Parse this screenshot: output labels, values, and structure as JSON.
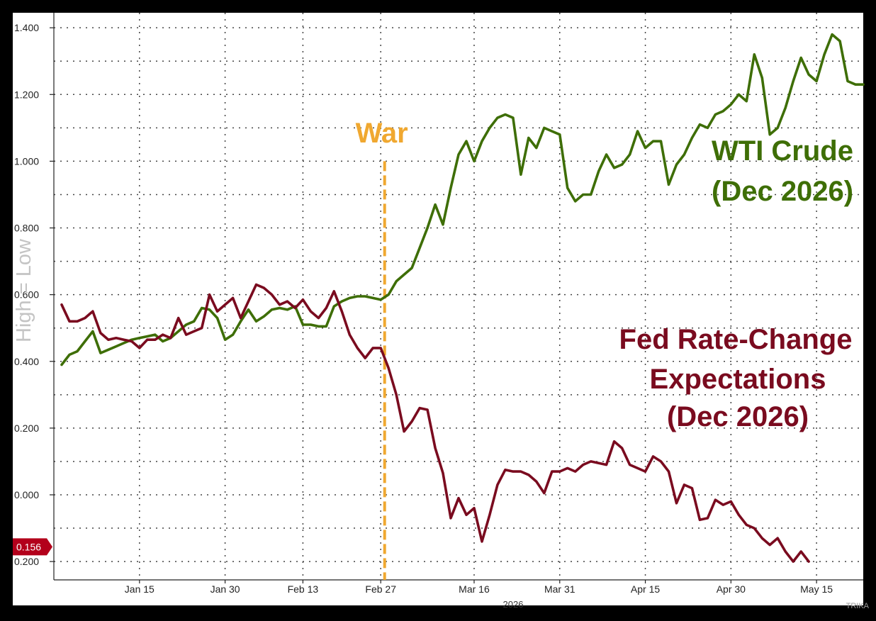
{
  "chart_data": {
    "type": "line",
    "left_axis": {
      "ticks": [
        1.4,
        1.2,
        1.0,
        0.8,
        0.6,
        0.4,
        0.2,
        0.0,
        -0.2
      ],
      "tick_labels": [
        "1.400",
        "1.200",
        "1.000",
        "0.800",
        "0.600",
        "0.400",
        "0.200",
        "0.000",
        "0.200"
      ],
      "ylim": [
        -0.255,
        1.445
      ],
      "side_label": "High = Low",
      "last_value_marker": {
        "label": "0.156",
        "value": -0.156,
        "color": "#b3001b"
      }
    },
    "x_axis": {
      "tick_labels": [
        "Jan 15",
        "Jan 30",
        "Feb 13",
        "Feb 27",
        "Mar 16",
        "Mar 31",
        "Apr 15",
        "Apr 30",
        "May 15"
      ],
      "tick_index": [
        10,
        21,
        31,
        41,
        53,
        64,
        75,
        86,
        97
      ],
      "n_points": 104,
      "year_label": "2026",
      "watermark": "TRIKA"
    },
    "event_marker": {
      "label": "War",
      "index": 41.5,
      "color": "#f0a830"
    },
    "grid": true,
    "series": [
      {
        "name": "WTI Crude (Dec 2026)",
        "label_lines": [
          "WTI Crude",
          "(Dec 2026)"
        ],
        "color": "#3e6e06",
        "values": [
          0.39,
          0.42,
          0.43,
          0.46,
          0.49,
          0.425,
          0.435,
          0.445,
          0.455,
          0.465,
          0.47,
          0.475,
          0.48,
          0.46,
          0.47,
          0.49,
          0.51,
          0.52,
          0.56,
          0.555,
          0.53,
          0.465,
          0.48,
          0.52,
          0.555,
          0.52,
          0.535,
          0.555,
          0.56,
          0.555,
          0.565,
          0.51,
          0.51,
          0.505,
          0.505,
          0.565,
          0.58,
          0.59,
          0.595,
          0.595,
          0.59,
          0.585,
          0.6,
          0.64,
          0.66,
          0.68,
          0.74,
          0.8,
          0.87,
          0.81,
          0.92,
          1.02,
          1.06,
          1.0,
          1.06,
          1.1,
          1.13,
          1.14,
          1.13,
          0.96,
          1.07,
          1.04,
          1.1,
          1.09,
          1.08,
          0.92,
          0.88,
          0.9,
          0.9,
          0.97,
          1.02,
          0.98,
          0.99,
          1.02,
          1.09,
          1.04,
          1.06,
          1.06,
          0.93,
          0.99,
          1.02,
          1.07,
          1.11,
          1.1,
          1.14,
          1.15,
          1.17,
          1.2,
          1.18,
          1.32,
          1.25,
          1.08,
          1.1,
          1.16,
          1.24,
          1.31,
          1.26,
          1.24,
          1.32,
          1.38,
          1.36,
          1.24,
          1.23,
          1.23
        ]
      },
      {
        "name": "Fed Rate-Change Expectations (Dec 2026)",
        "label_lines": [
          "Fed Rate-Change",
          "Expectations",
          "(Dec 2026)"
        ],
        "color": "#7a0b1f",
        "values": [
          0.57,
          0.52,
          0.52,
          0.53,
          0.55,
          0.485,
          0.465,
          0.47,
          0.465,
          0.46,
          0.44,
          0.465,
          0.465,
          0.48,
          0.47,
          0.53,
          0.48,
          0.49,
          0.5,
          0.6,
          0.55,
          0.57,
          0.59,
          0.53,
          0.58,
          0.63,
          0.62,
          0.6,
          0.57,
          0.58,
          0.56,
          0.585,
          0.55,
          0.53,
          0.56,
          0.61,
          0.55,
          0.48,
          0.44,
          0.41,
          0.44,
          0.44,
          0.38,
          0.3,
          0.19,
          0.22,
          0.26,
          0.255,
          0.14,
          0.065,
          -0.07,
          -0.01,
          -0.06,
          -0.04,
          -0.14,
          -0.06,
          0.03,
          0.075,
          0.07,
          0.07,
          0.06,
          0.04,
          0.005,
          0.07,
          0.07,
          0.08,
          0.07,
          0.09,
          0.1,
          0.095,
          0.09,
          0.16,
          0.14,
          0.09,
          0.08,
          0.07,
          0.115,
          0.1,
          0.07,
          -0.025,
          0.03,
          0.02,
          -0.075,
          -0.07,
          -0.015,
          -0.03,
          -0.02,
          -0.06,
          -0.09,
          -0.1,
          -0.13,
          -0.15,
          -0.13,
          -0.17,
          -0.2,
          -0.17,
          -0.2
        ]
      }
    ]
  }
}
